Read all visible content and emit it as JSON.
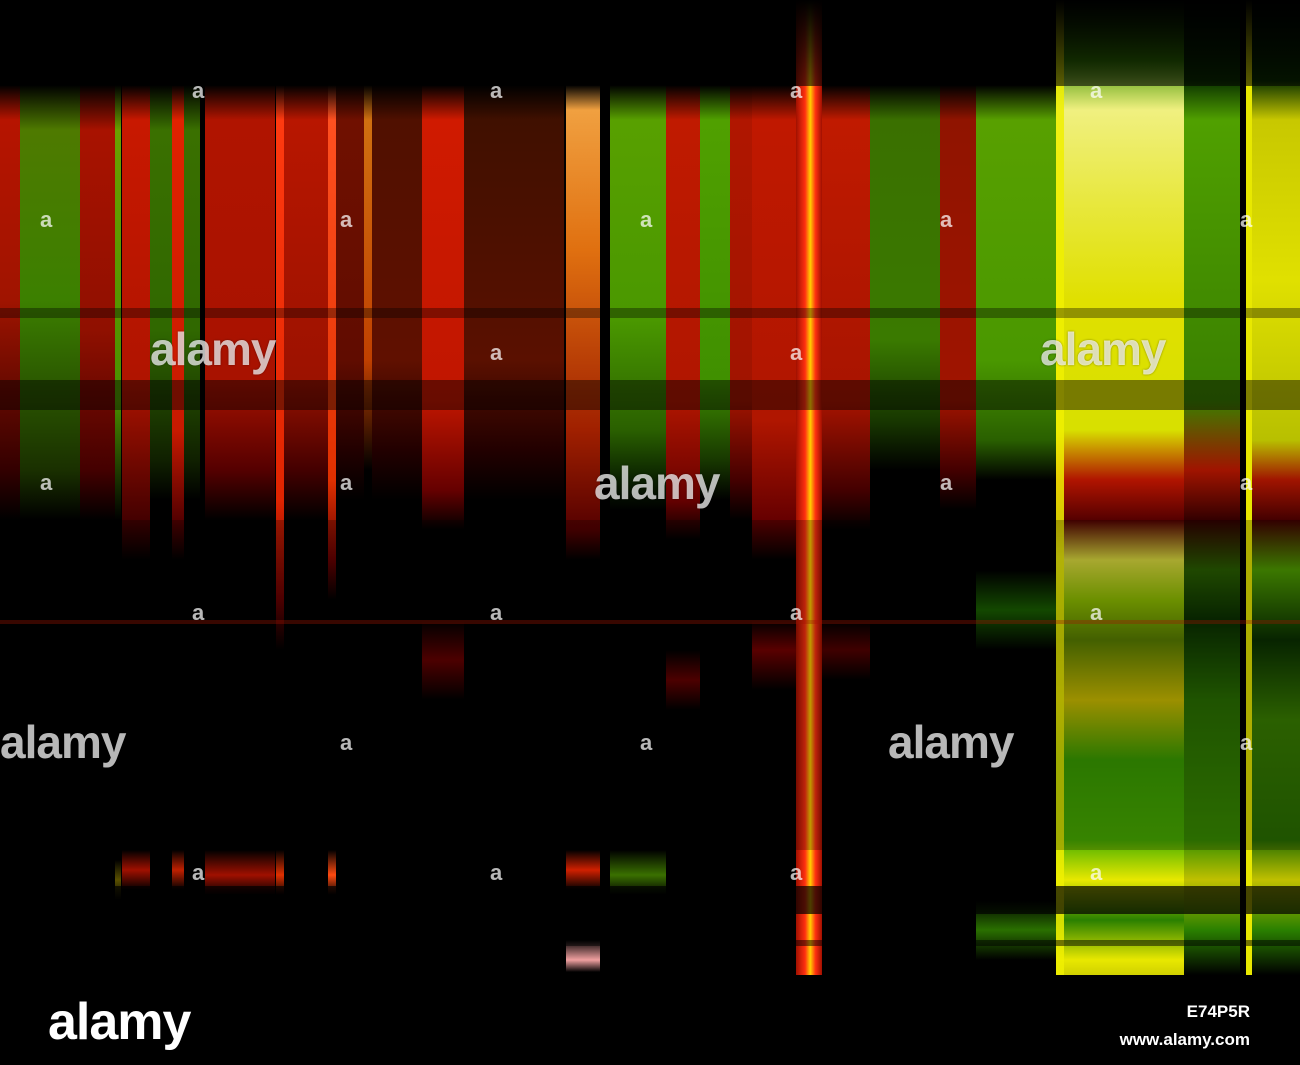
{
  "image": {
    "description_colors": {
      "background": "#000000",
      "red": "#d01c00",
      "green": "#3aa000",
      "yellow": "#e8e800"
    }
  },
  "watermark": {
    "word": "alamy",
    "mark": "a"
  },
  "footer": {
    "logo": "alamy",
    "image_id": "E74P5R",
    "url": "www.alamy.com"
  }
}
